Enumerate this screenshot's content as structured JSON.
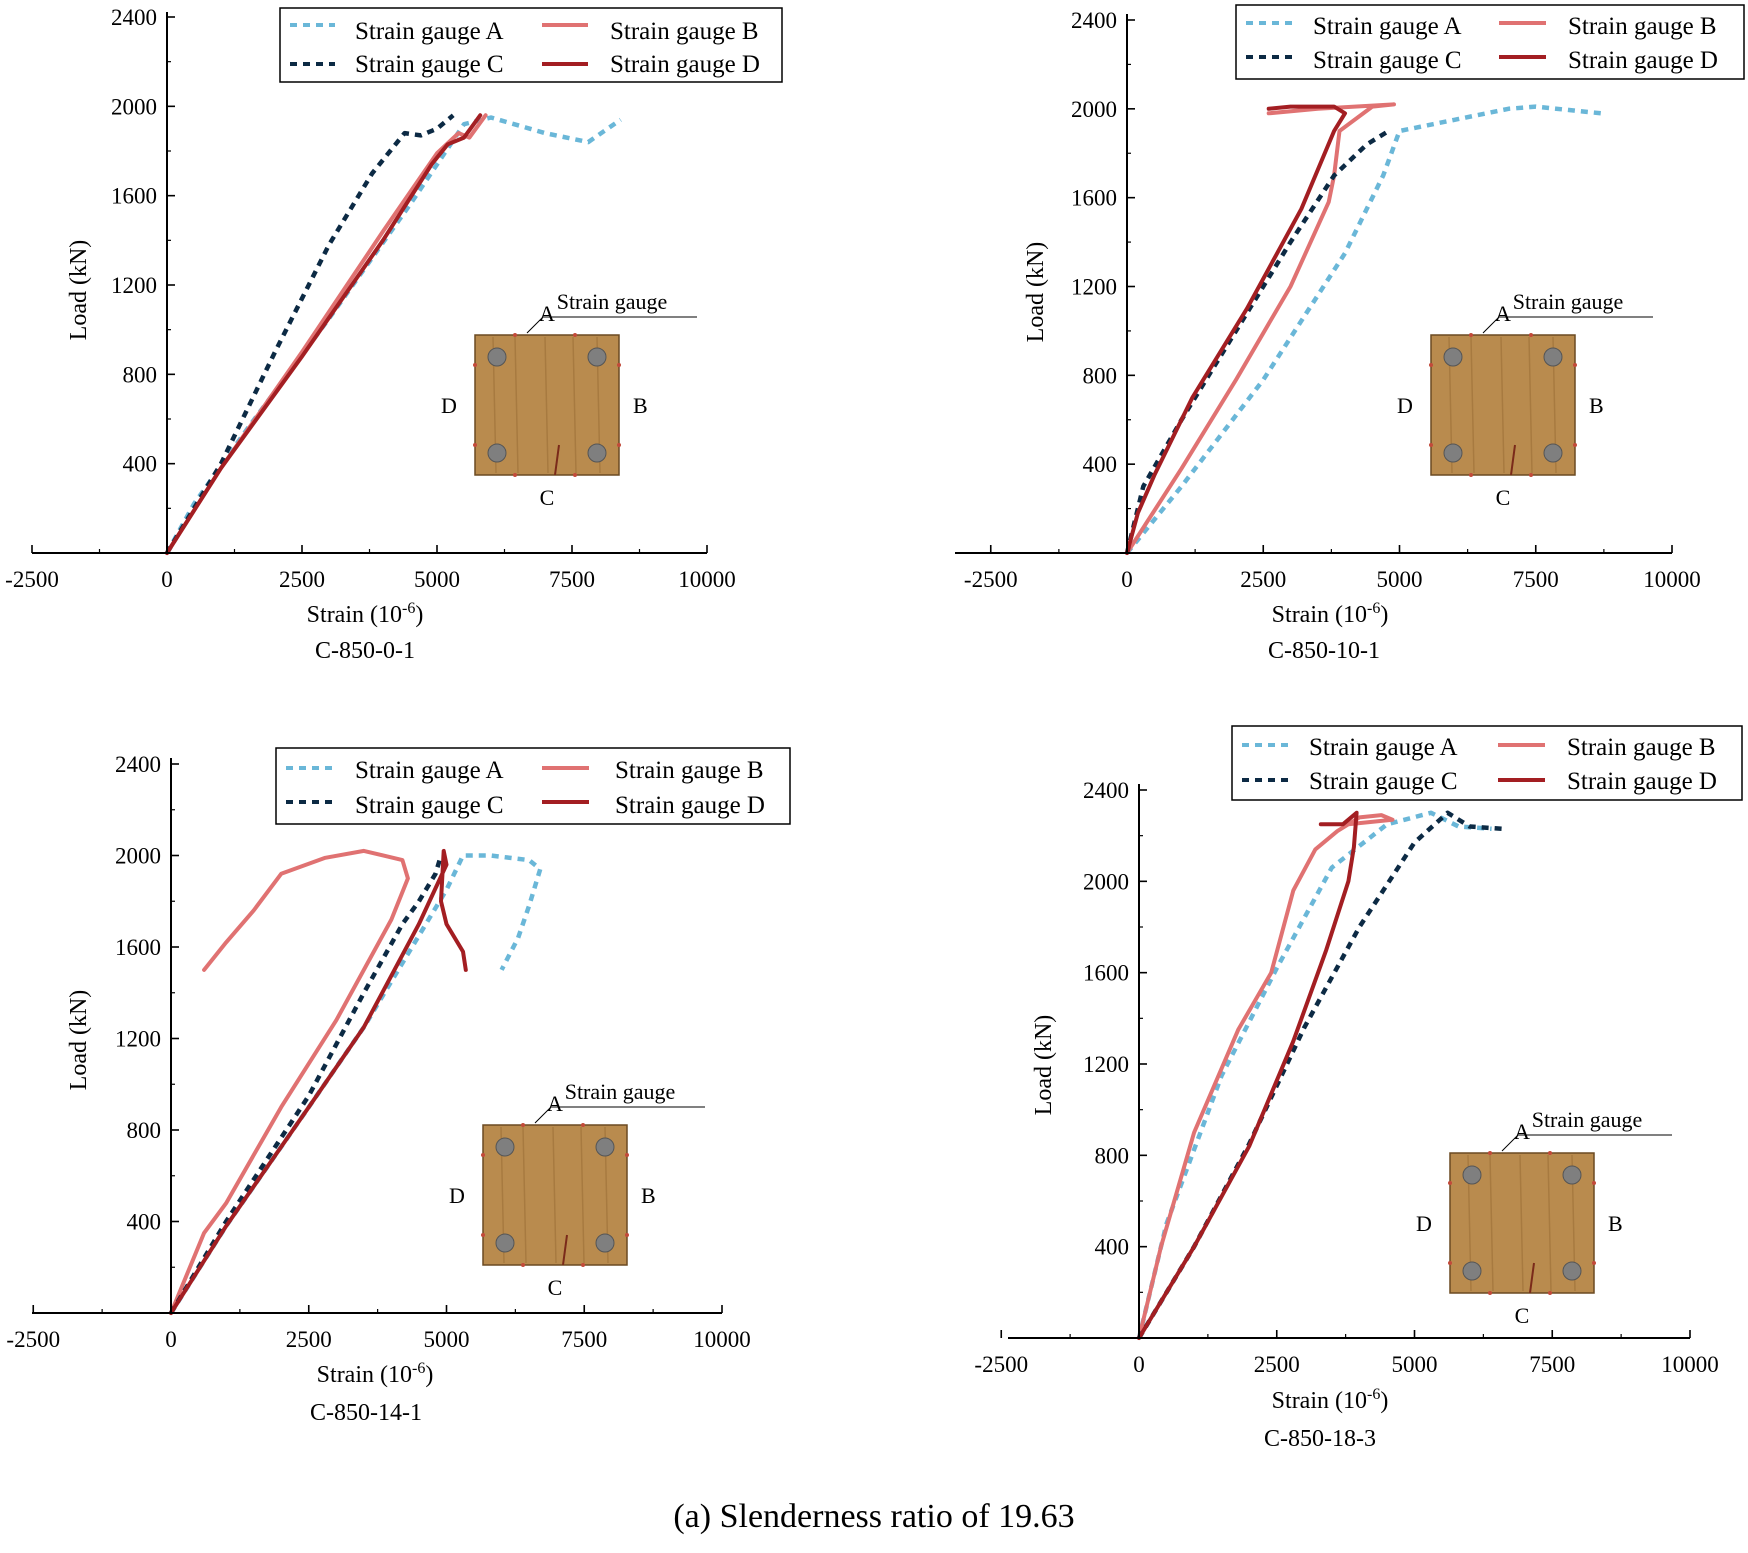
{
  "caption": "(a) Slenderness ratio of 19.63",
  "colors": {
    "A": "#6ab7d8",
    "B": "#e07272",
    "C": "#0c2a44",
    "D": "#a31e22",
    "wood": "#b98b4e",
    "wood_dark": "#9c6f37",
    "rebar": "#7f7f7f"
  },
  "inset": {
    "label_A": "A",
    "label_B": "B",
    "label_C": "C",
    "label_D": "D",
    "label_gauge": "Strain gauge"
  },
  "chart_data": [
    {
      "type": "line",
      "title": "C-850-0-1",
      "xlabel": "Strain (10",
      "xlabel_sup": "-6",
      "xlabel_end": ")",
      "ylabel": "Load (kN)",
      "xlim": [
        -2500,
        10000
      ],
      "ylim": [
        0,
        2400
      ],
      "xticks": [
        "-2500",
        "0",
        "2500",
        "5000",
        "7500",
        "10000"
      ],
      "yticks": [
        "400",
        "800",
        "1200",
        "1600",
        "2000",
        "2400"
      ],
      "legend": [
        "Strain gauge A",
        "Strain gauge B",
        "Strain gauge C",
        "Strain gauge D"
      ],
      "series": [
        {
          "name": "Strain gauge A",
          "x": [
            0,
            500,
            1500,
            3000,
            4500,
            5500,
            6000,
            7000,
            7800,
            8400
          ],
          "y": [
            0,
            220,
            560,
            1050,
            1560,
            1920,
            1950,
            1880,
            1840,
            1940
          ]
        },
        {
          "name": "Strain gauge B",
          "x": [
            0,
            1000,
            2500,
            4000,
            5000,
            5400,
            5600,
            5900
          ],
          "y": [
            0,
            380,
            900,
            1440,
            1790,
            1880,
            1860,
            1960
          ]
        },
        {
          "name": "Strain gauge C",
          "x": [
            0,
            1000,
            2000,
            3000,
            3800,
            4400,
            4700,
            5000,
            5300
          ],
          "y": [
            0,
            400,
            900,
            1380,
            1700,
            1880,
            1870,
            1900,
            1960
          ]
        },
        {
          "name": "Strain gauge D",
          "x": [
            0,
            1000,
            2500,
            4000,
            4900,
            5200,
            5500,
            5800
          ],
          "y": [
            0,
            380,
            880,
            1400,
            1740,
            1830,
            1860,
            1960
          ]
        }
      ]
    },
    {
      "type": "line",
      "title": "C-850-10-1",
      "xlabel": "Strain (10",
      "xlabel_sup": "-6",
      "xlabel_end": ")",
      "ylabel": "Load (kN)",
      "xlim": [
        -2500,
        10000
      ],
      "ylim": [
        0,
        2400
      ],
      "xticks": [
        "-2500",
        "0",
        "2500",
        "5000",
        "7500",
        "10000"
      ],
      "yticks": [
        "400",
        "800",
        "1200",
        "1600",
        "2000",
        "2400"
      ],
      "legend": [
        "Strain gauge A",
        "Strain gauge B",
        "Strain gauge C",
        "Strain gauge D"
      ],
      "series": [
        {
          "name": "Strain gauge A",
          "x": [
            0,
            1000,
            2500,
            4000,
            4700,
            5000,
            6000,
            7000,
            7500,
            8300,
            8700
          ],
          "y": [
            0,
            300,
            780,
            1350,
            1700,
            1900,
            1950,
            2000,
            2010,
            1990,
            1980
          ]
        },
        {
          "name": "Strain gauge B",
          "x": [
            0,
            1000,
            2000,
            3000,
            3700,
            3800,
            3900,
            4500,
            4900,
            3500,
            2600
          ],
          "y": [
            0,
            380,
            780,
            1200,
            1580,
            1700,
            1900,
            2010,
            2020,
            2000,
            1980
          ]
        },
        {
          "name": "Strain gauge C",
          "x": [
            0,
            300,
            1000,
            2000,
            3000,
            3800,
            4400,
            4800
          ],
          "y": [
            0,
            300,
            600,
            1000,
            1400,
            1700,
            1840,
            1900
          ]
        },
        {
          "name": "Strain gauge D",
          "x": [
            0,
            200,
            500,
            1200,
            2200,
            3200,
            3800,
            4000,
            3800,
            3000,
            2600
          ],
          "y": [
            0,
            180,
            350,
            700,
            1100,
            1550,
            1900,
            1980,
            2010,
            2010,
            2000
          ]
        }
      ]
    },
    {
      "type": "line",
      "title": "C-850-14-1",
      "xlabel": "Strain (10",
      "xlabel_sup": "-6",
      "xlabel_end": ")",
      "ylabel": "Load (kN)",
      "xlim": [
        -2500,
        10000
      ],
      "ylim": [
        0,
        2400
      ],
      "xticks": [
        "-2500",
        "0",
        "2500",
        "5000",
        "7500",
        "10000"
      ],
      "yticks": [
        "400",
        "800",
        "1200",
        "1600",
        "2000",
        "2400"
      ],
      "legend": [
        "Strain gauge A",
        "Strain gauge B",
        "Strain gauge C",
        "Strain gauge D"
      ],
      "series": [
        {
          "name": "Strain gauge A",
          "x": [
            0,
            1000,
            2500,
            3500,
            4500,
            5000,
            5300,
            5800,
            6500,
            6700,
            6500,
            6300,
            6000
          ],
          "y": [
            0,
            380,
            900,
            1250,
            1650,
            1850,
            2000,
            2000,
            1980,
            1940,
            1780,
            1640,
            1500
          ]
        },
        {
          "name": "Strain gauge B",
          "x": [
            0,
            600,
            1000,
            2000,
            3000,
            4000,
            4300,
            4200,
            3500,
            2800,
            2000,
            1500,
            1000,
            600
          ],
          "y": [
            0,
            350,
            480,
            900,
            1280,
            1720,
            1900,
            1980,
            2020,
            1990,
            1920,
            1760,
            1620,
            1500
          ]
        },
        {
          "name": "Strain gauge C",
          "x": [
            0,
            1000,
            2500,
            3500,
            4200,
            4500,
            4800,
            4900
          ],
          "y": [
            0,
            400,
            950,
            1400,
            1700,
            1800,
            1920,
            2000
          ]
        },
        {
          "name": "Strain gauge D",
          "x": [
            0,
            1000,
            2500,
            3500,
            4500,
            5000,
            4950,
            4900,
            5000,
            5300,
            5350
          ],
          "y": [
            0,
            380,
            900,
            1250,
            1700,
            1960,
            2020,
            1800,
            1700,
            1580,
            1500
          ]
        }
      ]
    },
    {
      "type": "line",
      "title": "C-850-18-3",
      "xlabel": "Strain (10",
      "xlabel_sup": "-6",
      "xlabel_end": ")",
      "ylabel": "Load (kN)",
      "xlim": [
        -2500,
        10000
      ],
      "ylim": [
        0,
        2400
      ],
      "xticks": [
        "-2500",
        "0",
        "2500",
        "5000",
        "7500",
        "10000"
      ],
      "yticks": [
        "400",
        "800",
        "1200",
        "1600",
        "2000",
        "2400"
      ],
      "legend": [
        "Strain gauge A",
        "Strain gauge B",
        "Strain gauge C",
        "Strain gauge D"
      ],
      "series": [
        {
          "name": "Strain gauge A",
          "x": [
            0,
            500,
            1500,
            2500,
            3500,
            4500,
            5300,
            5800,
            6400
          ],
          "y": [
            0,
            500,
            1150,
            1620,
            2060,
            2250,
            2300,
            2240,
            2230
          ]
        },
        {
          "name": "Strain gauge B",
          "x": [
            0,
            400,
            1000,
            1800,
            2400,
            2800,
            3200,
            3600,
            4000,
            4400,
            4600,
            4200,
            3800
          ],
          "y": [
            0,
            400,
            900,
            1350,
            1600,
            1960,
            2140,
            2220,
            2280,
            2290,
            2270,
            2260,
            2250
          ]
        },
        {
          "name": "Strain gauge C",
          "x": [
            0,
            1000,
            2000,
            3000,
            4000,
            5000,
            5600,
            6000,
            6600
          ],
          "y": [
            0,
            400,
            850,
            1360,
            1800,
            2170,
            2300,
            2240,
            2230
          ]
        },
        {
          "name": "Strain gauge D",
          "x": [
            0,
            1000,
            2000,
            2800,
            3400,
            3800,
            3900,
            3950,
            3700,
            3300
          ],
          "y": [
            0,
            400,
            840,
            1300,
            1700,
            2000,
            2150,
            2300,
            2250,
            2250
          ]
        }
      ]
    }
  ]
}
